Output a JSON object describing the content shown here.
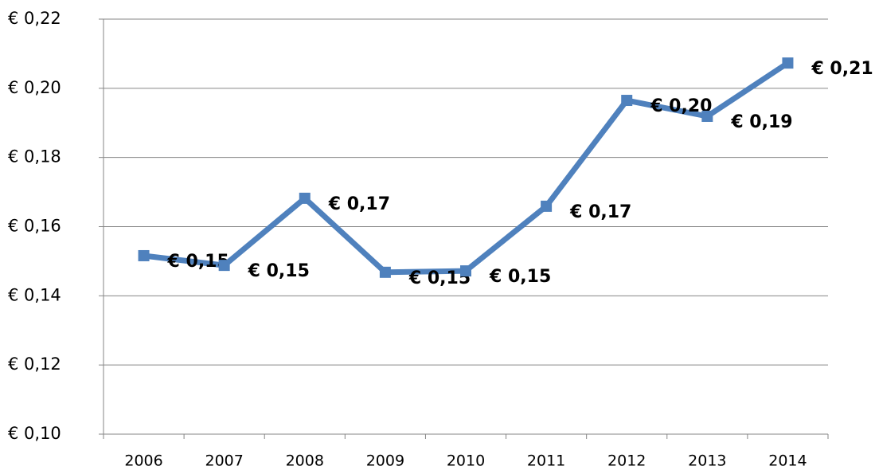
{
  "chart_data": {
    "type": "line",
    "categories": [
      "2006",
      "2007",
      "2008",
      "2009",
      "2010",
      "2011",
      "2012",
      "2013",
      "2014"
    ],
    "series": [
      {
        "color": "#4f81bd",
        "values": [
          0.1516,
          0.1488,
          0.1682,
          0.1468,
          0.1472,
          0.1659,
          0.1965,
          0.1919,
          0.2073
        ],
        "value_labels": [
          "€ 0,15",
          "€ 0,15",
          "€ 0,17",
          "€ 0,15",
          "€ 0,15",
          "€ 0,17",
          "€ 0,20",
          "€ 0,19",
          "€ 0,21"
        ]
      }
    ],
    "ylim": [
      0.1,
      0.22
    ],
    "yticks": [
      {
        "value": 0.1,
        "label": "€ 0,10"
      },
      {
        "value": 0.12,
        "label": "€ 0,12"
      },
      {
        "value": 0.14,
        "label": "€ 0,14"
      },
      {
        "value": 0.16,
        "label": "€ 0,16"
      },
      {
        "value": 0.18,
        "label": "€ 0,18"
      },
      {
        "value": 0.2,
        "label": "€ 0,20"
      },
      {
        "value": 0.22,
        "label": "€ 0,22"
      }
    ],
    "grid": true
  }
}
